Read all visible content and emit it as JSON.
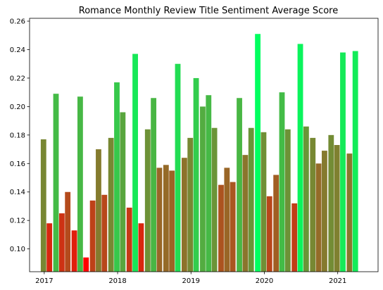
{
  "chart_data": {
    "type": "bar",
    "title": "Romance Monthly Review Title Sentiment Average Score",
    "xlabel": "",
    "ylabel": "",
    "xlim": [
      2016.8,
      2021.55
    ],
    "ylim": [
      0.084,
      0.262
    ],
    "x_ticks": [
      2017,
      2018,
      2019,
      2020,
      2021
    ],
    "x_tick_labels": [
      "2017",
      "2018",
      "2019",
      "2020",
      "2021"
    ],
    "y_ticks": [
      0.1,
      0.12,
      0.14,
      0.16,
      0.18,
      0.2,
      0.22,
      0.24,
      0.26
    ],
    "y_tick_labels": [
      "0.10",
      "0.12",
      "0.14",
      "0.16",
      "0.18",
      "0.20",
      "0.22",
      "0.24",
      "0.26"
    ],
    "grid": false,
    "legend": "none",
    "color_scale": {
      "low": "#ff0000",
      "high": "#00ff60",
      "min_value": 0.094,
      "max_value": 0.251
    },
    "bar_width_years": 0.075,
    "x": [
      2016.99,
      2017.07,
      2017.16,
      2017.24,
      2017.32,
      2017.41,
      2017.49,
      2017.57,
      2017.66,
      2017.74,
      2017.82,
      2017.91,
      2017.99,
      2018.07,
      2018.16,
      2018.24,
      2018.32,
      2018.41,
      2018.49,
      2018.57,
      2018.66,
      2018.74,
      2018.82,
      2018.91,
      2018.99,
      2019.07,
      2019.16,
      2019.24,
      2019.32,
      2019.41,
      2019.49,
      2019.57,
      2019.66,
      2019.74,
      2019.82,
      2019.91,
      2019.99,
      2020.07,
      2020.16,
      2020.24,
      2020.32,
      2020.41,
      2020.49,
      2020.57,
      2020.66,
      2020.74,
      2020.82,
      2020.91,
      2020.99,
      2021.07,
      2021.16,
      2021.24
    ],
    "values": [
      0.177,
      0.118,
      0.209,
      0.125,
      0.14,
      0.113,
      0.207,
      0.094,
      0.134,
      0.17,
      0.138,
      0.178,
      0.217,
      0.196,
      0.129,
      0.237,
      0.118,
      0.184,
      0.206,
      0.157,
      0.159,
      0.155,
      0.23,
      0.164,
      0.178,
      0.22,
      0.2,
      0.208,
      0.185,
      0.145,
      0.157,
      0.147,
      0.206,
      0.166,
      0.185,
      0.251,
      0.182,
      0.137,
      0.152,
      0.21,
      0.184,
      0.132,
      0.244,
      0.186,
      0.178,
      0.16,
      0.169,
      0.18,
      0.173,
      0.238,
      0.167,
      0.239
    ]
  }
}
